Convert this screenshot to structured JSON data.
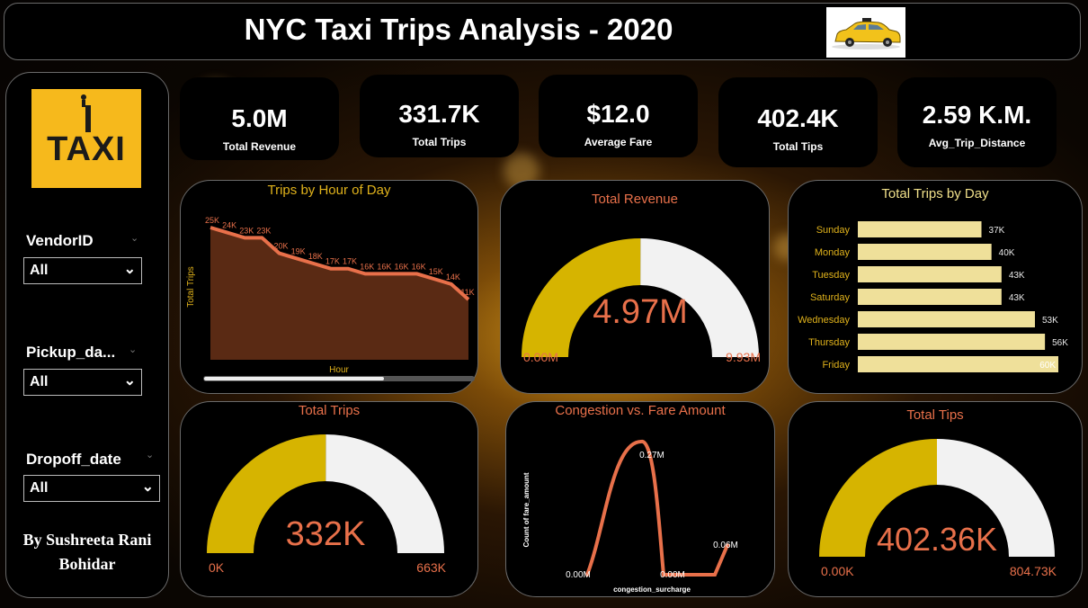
{
  "header": {
    "title": "NYC Taxi Trips Analysis - 2020"
  },
  "sidebar": {
    "logo_text": "TAXI",
    "slicers": [
      {
        "label": "VendorID",
        "value": "All"
      },
      {
        "label": "Pickup_da...",
        "value": "All"
      },
      {
        "label": "Dropoff_date",
        "value": "All"
      }
    ],
    "author": [
      "By Sushreeta Rani",
      "Bohidar"
    ]
  },
  "kpis": [
    {
      "value": "5.0M",
      "label": "Total Revenue"
    },
    {
      "value": "331.7K",
      "label": "Total Trips"
    },
    {
      "value": "$12.0",
      "label": "Average Fare"
    },
    {
      "value": "402.4K",
      "label": "Total Tips"
    },
    {
      "value": "2.59 K.M.",
      "label": "Avg_Trip_Distance"
    }
  ],
  "colors": {
    "gauge_fill": "#d6b400",
    "gauge_track": "#f2f2f2",
    "accent": "#e8704a",
    "title_yellow": "#e0b21b",
    "area_fill": "#5a2a14",
    "bar_fill": "#efe09a"
  },
  "chart_data": [
    {
      "type": "area",
      "title": "Trips by Hour of Day",
      "xlabel": "Hour",
      "ylabel": "Total Trips",
      "values": [
        25,
        24,
        23,
        23,
        20,
        19,
        18,
        17,
        17,
        16,
        16,
        16,
        16,
        15,
        14,
        11
      ],
      "labels": [
        "25K",
        "24K",
        "23K",
        "23K",
        "20K",
        "19K",
        "18K",
        "17K",
        "17K",
        "16K",
        "16K",
        "16K",
        "16K",
        "15K",
        "14K",
        "11K"
      ],
      "ylim": [
        0,
        26
      ]
    },
    {
      "type": "gauge",
      "title": "Total Revenue",
      "value": 4.97,
      "min": 0,
      "max": 9.93,
      "value_label": "4.97M",
      "min_label": "0.00M",
      "max_label": "9.93M"
    },
    {
      "type": "bar",
      "title": "Total Trips by Day",
      "categories": [
        "Sunday",
        "Monday",
        "Tuesday",
        "Saturday",
        "Wednesday",
        "Thursday",
        "Friday"
      ],
      "values": [
        37,
        40,
        43,
        43,
        53,
        56,
        60
      ],
      "labels": [
        "37K",
        "40K",
        "43K",
        "43K",
        "53K",
        "56K",
        "60K"
      ],
      "xlim": [
        0,
        60
      ]
    },
    {
      "type": "gauge",
      "title": "Total Trips",
      "value": 332,
      "min": 0,
      "max": 663,
      "value_label": "332K",
      "min_label": "0K",
      "max_label": "663K"
    },
    {
      "type": "line",
      "title": "Congestion vs. Fare Amount",
      "xlabel": "congestion_surcharge",
      "ylabel": "Count of fare_amount",
      "points": [
        {
          "label": "0.00M",
          "value": 0
        },
        {
          "label": "0.27M",
          "value": 0.27
        },
        {
          "label": "0.00M",
          "value": 0
        },
        {
          "label": "0.06M",
          "value": 0.06
        }
      ]
    },
    {
      "type": "gauge",
      "title": "Total Tips",
      "value": 402.36,
      "min": 0,
      "max": 804.73,
      "value_label": "402.36K",
      "min_label": "0.00K",
      "max_label": "804.73K"
    }
  ]
}
